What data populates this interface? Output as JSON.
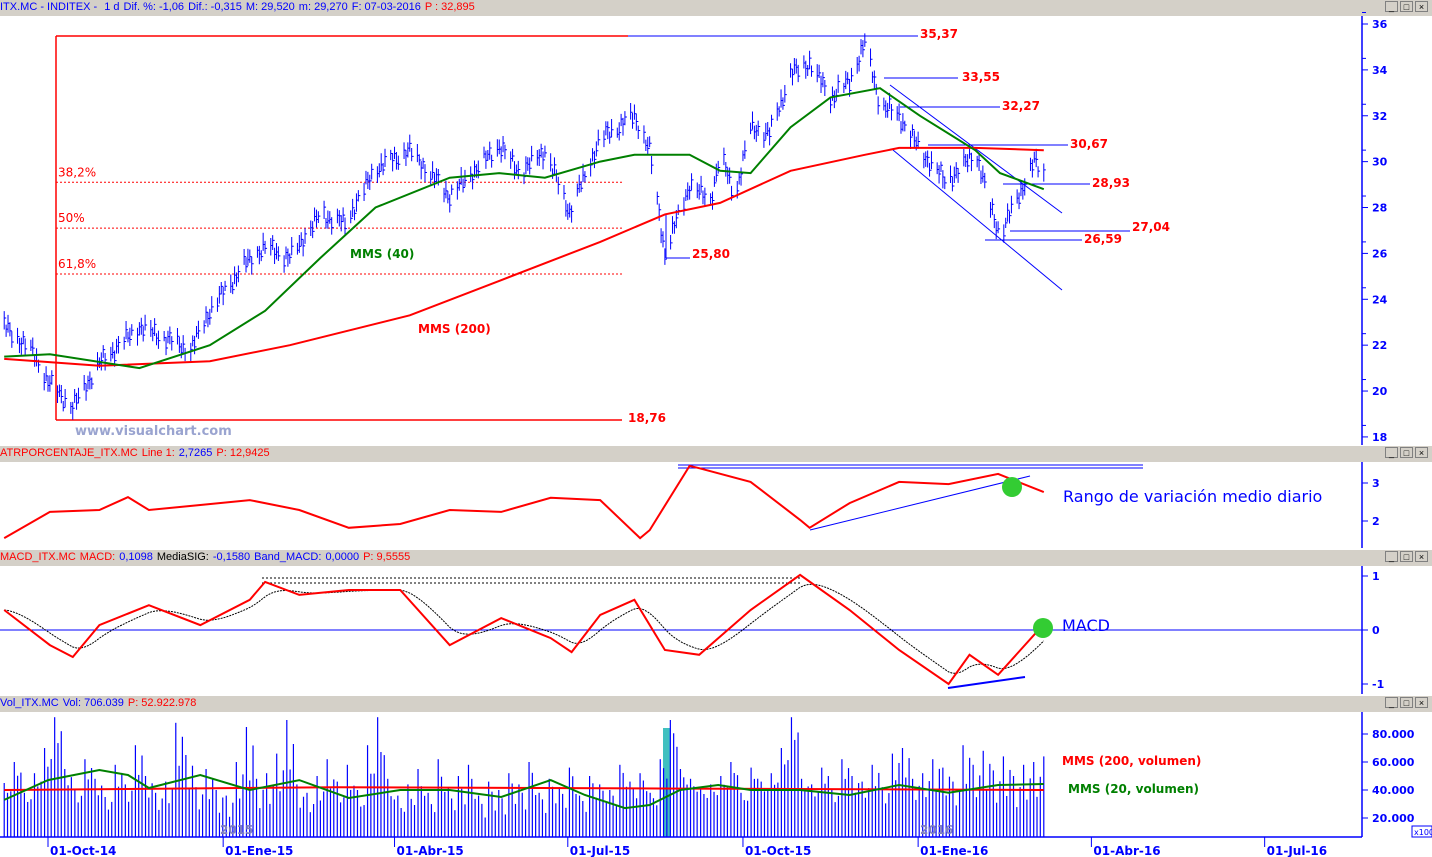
{
  "headers": {
    "price": {
      "symbol": "ITX.MC - INDITEX - ",
      "tf": "1 d",
      "dif_pct": "Dif. %: -1,06",
      "dif": "Dif.: -0,315",
      "max": "M: 29,520",
      "min": "m: 29,270",
      "date": "F: 07-03-2016",
      "p": "P : 32,895"
    },
    "atr": {
      "name": "ATRPORCENTAJE_ITX.MC",
      "line": "Line 1:",
      "line_val": "2,7265",
      "p": "P: 12,9425"
    },
    "macd": {
      "name": "MACD_ITX.MC",
      "macd": "MACD:",
      "macd_val": "0,1098",
      "sig": "MediaSIG:",
      "sig_val": "-0,1580",
      "band": "Band_MACD:",
      "band_val": "0,0000",
      "p": "P: 9,5555"
    },
    "vol": {
      "name": "Vol_ITX.MC",
      "vol": "Vol: 706.039",
      "p": "P: 52.922.978"
    }
  },
  "window_buttons": {
    "min": "_",
    "max": "□",
    "close": "×"
  },
  "colors": {
    "price": "#0000ff",
    "mms40": "#008000",
    "mms200": "#ff0000",
    "atr": "#ff0000",
    "macd": "#ff0000",
    "signal": "#000000",
    "axis": "#0000ff",
    "highlight": "#40c0c0",
    "circle": "#33cc33"
  },
  "chart_data": [
    {
      "type": "ohlc",
      "title": "ITX.MC - INDITEX",
      "ylim": [
        18,
        36
      ],
      "yticks": [
        "18",
        "20",
        "22",
        "24",
        "26",
        "28",
        "30",
        "32",
        "34",
        "36"
      ],
      "xticks": [
        {
          "d": "2014-10-01",
          "label": "01-Oct-14"
        },
        {
          "d": "2015-01-01",
          "label": "01-Ene-15"
        },
        {
          "d": "2015-04-01",
          "label": "01-Abr-15"
        },
        {
          "d": "2015-07-01",
          "label": "01-Jul-15"
        },
        {
          "d": "2015-10-01",
          "label": "01-Oct-15"
        },
        {
          "d": "2016-01-01",
          "label": "01-Ene-16"
        },
        {
          "d": "2016-04-01",
          "label": "01-Abr-16"
        },
        {
          "d": "2016-07-01",
          "label": "01-Jul-16"
        }
      ],
      "close": [
        [
          "2014-09-08",
          22.8
        ],
        [
          "2014-09-22",
          21.8
        ],
        [
          "2014-10-02",
          20.3
        ],
        [
          "2014-10-14",
          19.3
        ],
        [
          "2014-10-28",
          21.2
        ],
        [
          "2014-11-18",
          22.8
        ],
        [
          "2014-12-15",
          21.8
        ],
        [
          "2014-12-25",
          23.5
        ],
        [
          "2015-01-12",
          25.5
        ],
        [
          "2015-01-23",
          26.3
        ],
        [
          "2015-02-05",
          25.8
        ],
        [
          "2015-02-21",
          27.7
        ],
        [
          "2015-03-06",
          27.3
        ],
        [
          "2015-03-22",
          29.7
        ],
        [
          "2015-04-09",
          30.5
        ],
        [
          "2015-04-30",
          28.5
        ],
        [
          "2015-05-26",
          30.7
        ],
        [
          "2015-06-06",
          29.5
        ],
        [
          "2015-06-19",
          30.5
        ],
        [
          "2015-07-02",
          27.8
        ],
        [
          "2015-07-18",
          31.0
        ],
        [
          "2015-08-05",
          32.0
        ],
        [
          "2015-08-13",
          30.5
        ],
        [
          "2015-08-21",
          26.0
        ],
        [
          "2015-09-03",
          29.0
        ],
        [
          "2015-09-14",
          28.3
        ],
        [
          "2015-09-19",
          30.3
        ],
        [
          "2015-09-27",
          28.5
        ],
        [
          "2015-10-05",
          31.5
        ],
        [
          "2015-10-15",
          31.2
        ],
        [
          "2015-10-26",
          33.8
        ],
        [
          "2015-11-05",
          34.3
        ],
        [
          "2015-11-16",
          32.8
        ],
        [
          "2015-11-26",
          33.5
        ],
        [
          "2015-12-04",
          35.2
        ],
        [
          "2015-12-12",
          32.5
        ],
        [
          "2015-12-22",
          32.0
        ],
        [
          "2016-01-02",
          30.5
        ],
        [
          "2016-01-15",
          29.2
        ],
        [
          "2016-01-23",
          29.6
        ],
        [
          "2016-01-31",
          30.5
        ],
        [
          "2016-02-08",
          28.0
        ],
        [
          "2016-02-13",
          26.8
        ],
        [
          "2016-02-21",
          28.2
        ],
        [
          "2016-03-02",
          30.0
        ],
        [
          "2016-03-07",
          29.4
        ]
      ],
      "mms40": {
        "label": "MMS (40)",
        "points": [
          [
            "2014-09-08",
            21.5
          ],
          [
            "2014-10-02",
            21.6
          ],
          [
            "2014-11-18",
            21.0
          ],
          [
            "2014-12-25",
            22.0
          ],
          [
            "2015-01-23",
            23.5
          ],
          [
            "2015-02-21",
            25.8
          ],
          [
            "2015-03-22",
            28.0
          ],
          [
            "2015-04-30",
            29.3
          ],
          [
            "2015-05-26",
            29.5
          ],
          [
            "2015-06-19",
            29.3
          ],
          [
            "2015-07-18",
            30.0
          ],
          [
            "2015-08-05",
            30.3
          ],
          [
            "2015-09-03",
            30.3
          ],
          [
            "2015-09-19",
            29.6
          ],
          [
            "2015-10-05",
            29.5
          ],
          [
            "2015-10-26",
            31.5
          ],
          [
            "2015-11-16",
            32.8
          ],
          [
            "2015-12-12",
            33.2
          ],
          [
            "2016-01-02",
            32.0
          ],
          [
            "2016-01-31",
            30.5
          ],
          [
            "2016-02-13",
            29.5
          ],
          [
            "2016-03-07",
            28.8
          ]
        ]
      },
      "mms200": {
        "label": "MMS (200)",
        "points": [
          [
            "2014-09-08",
            21.4
          ],
          [
            "2014-10-28",
            21.1
          ],
          [
            "2014-12-25",
            21.3
          ],
          [
            "2015-02-05",
            22.0
          ],
          [
            "2015-04-09",
            23.3
          ],
          [
            "2015-05-26",
            24.8
          ],
          [
            "2015-07-18",
            26.5
          ],
          [
            "2015-08-21",
            27.7
          ],
          [
            "2015-09-19",
            28.2
          ],
          [
            "2015-10-26",
            29.6
          ],
          [
            "2015-12-04",
            30.3
          ],
          [
            "2015-12-22",
            30.6
          ],
          [
            "2016-01-31",
            30.6
          ],
          [
            "2016-03-07",
            30.5
          ]
        ]
      },
      "fibonacci": [
        {
          "label": "38,2%",
          "value": 29.1
        },
        {
          "label": "50%",
          "value": 27.1
        },
        {
          "label": "61,8%",
          "value": 25.1
        }
      ],
      "levels": [
        {
          "label": "35,37",
          "value": 35.37
        },
        {
          "label": "33,55",
          "value": 33.55
        },
        {
          "label": "32,27",
          "value": 32.27
        },
        {
          "label": "30,67",
          "value": 30.67
        },
        {
          "label": "28,93",
          "value": 28.93
        },
        {
          "label": "27,04",
          "value": 27.04
        },
        {
          "label": "26,59",
          "value": 26.59
        },
        {
          "label": "25,80",
          "value": 25.8
        },
        {
          "label": "18,76",
          "value": 18.76
        }
      ],
      "watermark": "www.visualchart.com"
    },
    {
      "type": "line",
      "title": "ATRPORCENTAJE_ITX.MC",
      "ylim": [
        1.3,
        3.5
      ],
      "yticks": [
        "2",
        "3"
      ],
      "annotation": "Rango de variación medio diario",
      "values": [
        [
          "2014-09-08",
          1.55
        ],
        [
          "2014-10-02",
          2.24
        ],
        [
          "2014-10-28",
          2.29
        ],
        [
          "2014-11-12",
          2.63
        ],
        [
          "2014-11-23",
          2.29
        ],
        [
          "2014-12-20",
          2.42
        ],
        [
          "2015-01-15",
          2.55
        ],
        [
          "2015-02-10",
          2.29
        ],
        [
          "2015-03-08",
          1.82
        ],
        [
          "2015-04-04",
          1.92
        ],
        [
          "2015-04-30",
          2.29
        ],
        [
          "2015-05-27",
          2.24
        ],
        [
          "2015-06-22",
          2.61
        ],
        [
          "2015-07-18",
          2.55
        ],
        [
          "2015-08-08",
          1.55
        ],
        [
          "2015-08-13",
          1.76
        ],
        [
          "2015-09-03",
          3.45
        ],
        [
          "2015-09-08",
          3.39
        ],
        [
          "2015-10-05",
          3.03
        ],
        [
          "2015-10-31",
          2.03
        ],
        [
          "2015-11-05",
          1.82
        ],
        [
          "2015-11-26",
          2.47
        ],
        [
          "2015-12-22",
          3.03
        ],
        [
          "2016-01-17",
          2.97
        ],
        [
          "2016-02-12",
          3.24
        ],
        [
          "2016-03-07",
          2.76
        ]
      ]
    },
    {
      "type": "line",
      "title": "MACD_ITX.MC",
      "ylim": [
        -1.2,
        1.2
      ],
      "yticks": [
        "-1",
        "0",
        "1"
      ],
      "annotation": "MACD",
      "values": [
        [
          "2014-09-08",
          0.37
        ],
        [
          "2014-10-02",
          -0.28
        ],
        [
          "2014-10-14",
          -0.5
        ],
        [
          "2014-10-28",
          0.09
        ],
        [
          "2014-11-23",
          0.46
        ],
        [
          "2014-12-20",
          0.09
        ],
        [
          "2015-01-15",
          0.56
        ],
        [
          "2015-01-23",
          0.89
        ],
        [
          "2015-02-10",
          0.65
        ],
        [
          "2015-03-08",
          0.74
        ],
        [
          "2015-04-04",
          0.74
        ],
        [
          "2015-04-30",
          -0.28
        ],
        [
          "2015-05-27",
          0.22
        ],
        [
          "2015-06-22",
          -0.15
        ],
        [
          "2015-07-03",
          -0.41
        ],
        [
          "2015-07-18",
          0.28
        ],
        [
          "2015-08-05",
          0.56
        ],
        [
          "2015-08-21",
          -0.37
        ],
        [
          "2015-09-08",
          -0.46
        ],
        [
          "2015-10-05",
          0.37
        ],
        [
          "2015-10-31",
          1.02
        ],
        [
          "2015-11-26",
          0.37
        ],
        [
          "2015-12-22",
          -0.37
        ],
        [
          "2016-01-17",
          -1.0
        ],
        [
          "2016-01-28",
          -0.46
        ],
        [
          "2016-02-12",
          -0.83
        ],
        [
          "2016-03-07",
          0.11
        ]
      ]
    },
    {
      "type": "bar",
      "title": "Vol_ITX.MC",
      "ylim": [
        0,
        90000
      ],
      "yticks": [
        "20.000",
        "40.000",
        "60.000",
        "80.000"
      ],
      "unit": "x100",
      "year_labels": [
        "2015",
        "2016"
      ],
      "first_date": "2014-09-08",
      "last_date": "2016-03-07",
      "values": [
        45,
        60,
        38,
        52,
        70,
        92,
        55,
        40,
        62,
        48,
        35,
        58,
        44,
        72,
        50,
        38,
        46,
        88,
        65,
        42,
        55,
        40,
        36,
        60,
        85,
        48,
        52,
        66,
        90,
        44,
        38,
        50,
        62,
        46,
        58,
        40,
        72,
        92,
        48,
        36,
        44,
        55,
        38,
        62,
        42,
        50,
        58,
        36,
        46,
        40,
        52,
        44,
        60,
        38,
        48,
        42,
        56,
        36,
        50,
        44,
        40,
        58,
        46,
        52,
        38,
        62,
        90,
        55,
        48,
        42,
        44,
        50,
        60,
        38,
        56,
        46,
        52,
        70,
        92,
        48,
        44,
        56,
        40,
        62,
        50,
        46,
        58,
        42,
        66,
        70,
        48,
        52,
        62,
        56,
        46,
        72,
        58,
        68,
        54,
        64,
        50,
        58,
        60,
        64
      ],
      "mms20": {
        "label": "MMS (20, volumen)",
        "points": [
          [
            "2014-09-08",
            32.9
          ],
          [
            "2014-10-01",
            47.1
          ],
          [
            "2014-10-28",
            54.3
          ],
          [
            "2014-11-12",
            50.7
          ],
          [
            "2014-11-23",
            41.4
          ],
          [
            "2014-12-20",
            50.7
          ],
          [
            "2015-01-15",
            40
          ],
          [
            "2015-02-10",
            47.1
          ],
          [
            "2015-03-08",
            34.3
          ],
          [
            "2015-04-04",
            40
          ],
          [
            "2015-04-30",
            40
          ],
          [
            "2015-05-27",
            35
          ],
          [
            "2015-06-22",
            47.1
          ],
          [
            "2015-07-10",
            36.4
          ],
          [
            "2015-07-31",
            27.1
          ],
          [
            "2015-08-13",
            29.3
          ],
          [
            "2015-08-29",
            40
          ],
          [
            "2015-09-18",
            43.6
          ],
          [
            "2015-10-05",
            40
          ],
          [
            "2015-10-31",
            40
          ],
          [
            "2015-11-26",
            36.4
          ],
          [
            "2015-12-22",
            43.6
          ],
          [
            "2016-01-17",
            38
          ],
          [
            "2016-02-12",
            43.6
          ],
          [
            "2016-03-07",
            44.3
          ]
        ]
      },
      "mms200": {
        "label": "MMS (200, volumen)",
        "points": [
          [
            "2014-09-08",
            40
          ],
          [
            "2015-03-01",
            42
          ],
          [
            "2015-09-01",
            41
          ],
          [
            "2016-03-07",
            40
          ]
        ]
      }
    }
  ]
}
